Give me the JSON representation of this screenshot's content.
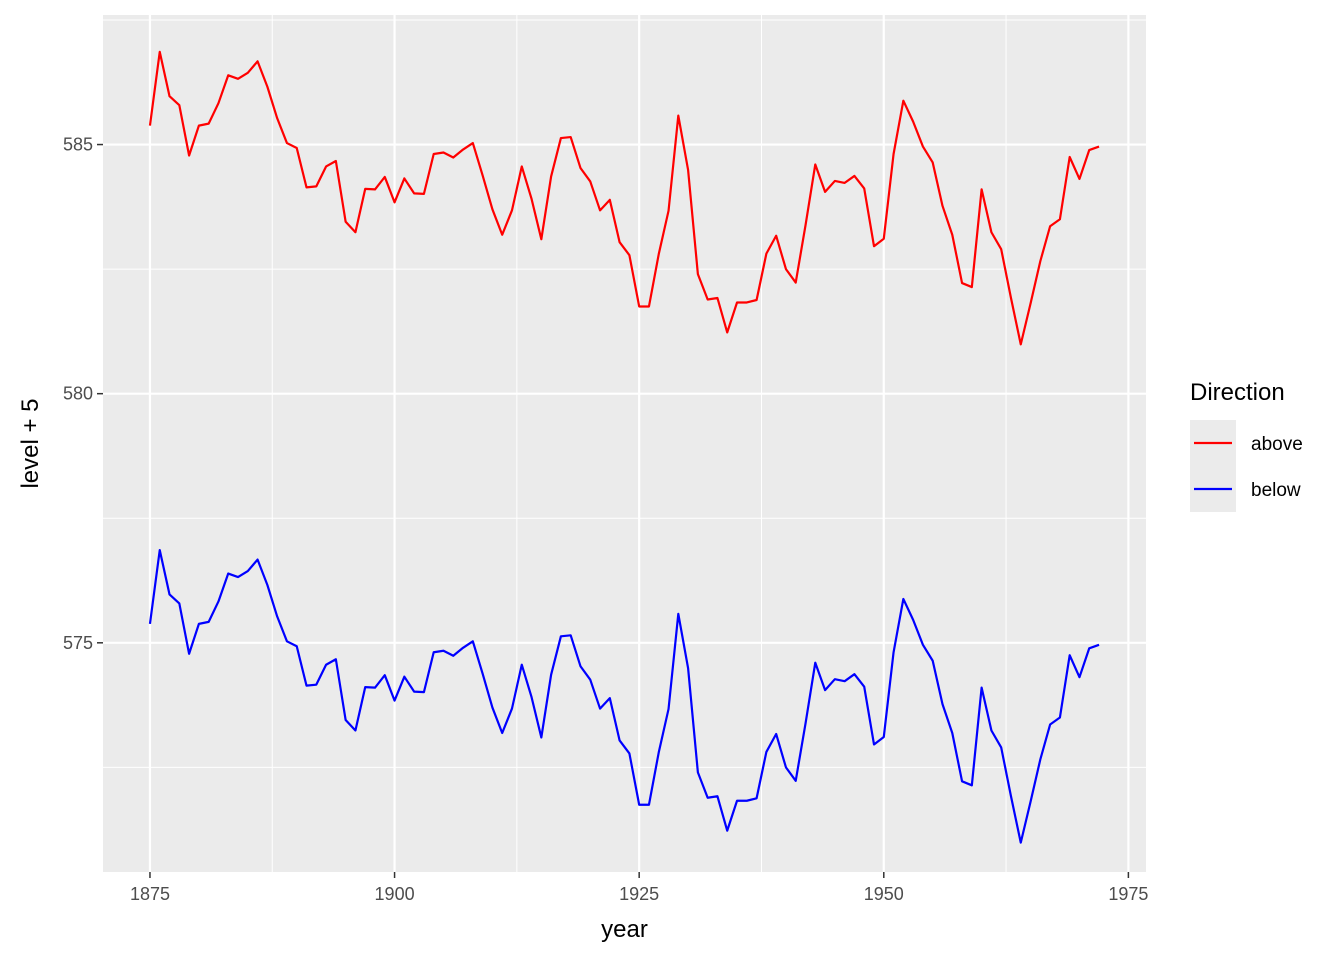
{
  "chart_data": {
    "type": "line",
    "title": "",
    "xlabel": "year",
    "ylabel": "level + 5",
    "xlim": [
      1870.2,
      1976.8
    ],
    "ylim": [
      570.4,
      587.6
    ],
    "x_ticks": [
      1875,
      1900,
      1925,
      1950,
      1975
    ],
    "y_ticks": [
      575,
      580,
      585
    ],
    "grid": true,
    "legend_position": "right",
    "legend_title": "Direction",
    "series": [
      {
        "name": "above",
        "color": "#FF0000",
        "x": [
          1875,
          1876,
          1877,
          1878,
          1879,
          1880,
          1881,
          1882,
          1883,
          1884,
          1885,
          1886,
          1887,
          1888,
          1889,
          1890,
          1891,
          1892,
          1893,
          1894,
          1895,
          1896,
          1897,
          1898,
          1899,
          1900,
          1901,
          1902,
          1903,
          1904,
          1905,
          1906,
          1907,
          1908,
          1909,
          1910,
          1911,
          1912,
          1913,
          1914,
          1915,
          1916,
          1917,
          1918,
          1919,
          1920,
          1921,
          1922,
          1923,
          1924,
          1925,
          1926,
          1927,
          1928,
          1929,
          1930,
          1931,
          1932,
          1933,
          1934,
          1935,
          1936,
          1937,
          1938,
          1939,
          1940,
          1941,
          1942,
          1943,
          1944,
          1945,
          1946,
          1947,
          1948,
          1949,
          1950,
          1951,
          1952,
          1953,
          1954,
          1955,
          1956,
          1957,
          1958,
          1959,
          1960,
          1961,
          1962,
          1963,
          1964,
          1965,
          1966,
          1967,
          1968,
          1969,
          1970,
          1971,
          1972
        ],
        "values": [
          585.38,
          586.86,
          585.97,
          585.79,
          584.78,
          585.38,
          585.42,
          585.83,
          586.39,
          586.32,
          586.44,
          586.67,
          586.16,
          585.53,
          585.03,
          584.93,
          584.14,
          584.16,
          584.56,
          584.67,
          583.45,
          583.24,
          584.11,
          584.1,
          584.35,
          583.84,
          584.32,
          584.02,
          584.01,
          584.81,
          584.84,
          584.74,
          584.9,
          585.03,
          584.38,
          583.7,
          583.19,
          583.68,
          584.56,
          583.91,
          583.1,
          584.36,
          585.13,
          585.15,
          584.53,
          584.26,
          583.68,
          583.89,
          583.04,
          582.78,
          581.75,
          581.75,
          582.8,
          583.67,
          585.58,
          584.49,
          582.4,
          581.89,
          581.92,
          581.23,
          581.83,
          581.83,
          581.88,
          582.81,
          583.17,
          582.5,
          582.23,
          583.38,
          584.6,
          584.05,
          584.27,
          584.23,
          584.37,
          584.12,
          582.96,
          583.11,
          584.81,
          585.88,
          585.46,
          584.96,
          584.64,
          583.77,
          583.19,
          582.22,
          582.14,
          584.1,
          583.24,
          582.9,
          581.92,
          580.99,
          581.81,
          582.66,
          583.36,
          583.5,
          584.75,
          584.31,
          584.89,
          584.96
        ]
      },
      {
        "name": "below",
        "color": "#0000FF",
        "x": [
          1875,
          1876,
          1877,
          1878,
          1879,
          1880,
          1881,
          1882,
          1883,
          1884,
          1885,
          1886,
          1887,
          1888,
          1889,
          1890,
          1891,
          1892,
          1893,
          1894,
          1895,
          1896,
          1897,
          1898,
          1899,
          1900,
          1901,
          1902,
          1903,
          1904,
          1905,
          1906,
          1907,
          1908,
          1909,
          1910,
          1911,
          1912,
          1913,
          1914,
          1915,
          1916,
          1917,
          1918,
          1919,
          1920,
          1921,
          1922,
          1923,
          1924,
          1925,
          1926,
          1927,
          1928,
          1929,
          1930,
          1931,
          1932,
          1933,
          1934,
          1935,
          1936,
          1937,
          1938,
          1939,
          1940,
          1941,
          1942,
          1943,
          1944,
          1945,
          1946,
          1947,
          1948,
          1949,
          1950,
          1951,
          1952,
          1953,
          1954,
          1955,
          1956,
          1957,
          1958,
          1959,
          1960,
          1961,
          1962,
          1963,
          1964,
          1965,
          1966,
          1967,
          1968,
          1969,
          1970,
          1971,
          1972
        ],
        "values": [
          575.38,
          576.86,
          575.97,
          575.79,
          574.78,
          575.38,
          575.42,
          575.83,
          576.39,
          576.32,
          576.44,
          576.67,
          576.16,
          575.53,
          575.03,
          574.93,
          574.14,
          574.16,
          574.56,
          574.67,
          573.45,
          573.24,
          574.11,
          574.1,
          574.35,
          573.84,
          574.32,
          574.02,
          574.01,
          574.81,
          574.84,
          574.74,
          574.9,
          575.03,
          574.38,
          573.7,
          573.19,
          573.68,
          574.56,
          573.91,
          573.1,
          574.36,
          575.13,
          575.15,
          574.53,
          574.26,
          573.68,
          573.89,
          573.04,
          572.78,
          571.75,
          571.75,
          572.8,
          573.67,
          575.58,
          574.49,
          572.4,
          571.89,
          571.92,
          571.23,
          571.83,
          571.83,
          571.88,
          572.81,
          573.17,
          572.5,
          572.23,
          573.38,
          574.6,
          574.05,
          574.27,
          574.23,
          574.37,
          574.12,
          572.96,
          573.11,
          574.81,
          575.88,
          575.46,
          574.96,
          574.64,
          573.77,
          573.19,
          572.22,
          572.14,
          574.1,
          573.24,
          572.9,
          571.92,
          570.99,
          571.81,
          572.66,
          573.36,
          573.5,
          574.75,
          574.31,
          574.89,
          574.96
        ]
      }
    ]
  }
}
